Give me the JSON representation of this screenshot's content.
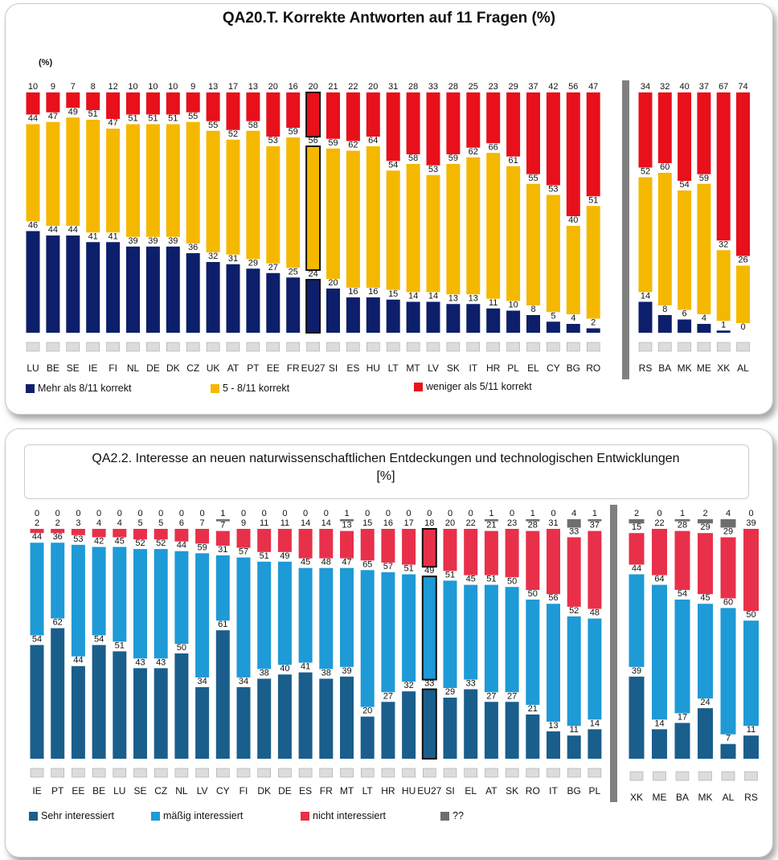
{
  "chart_data": [
    {
      "type": "bar",
      "stacked": true,
      "title": "QA20.T.  Korrekte Antworten auf 11 Fragen (%)",
      "unit_label": "(%)",
      "categories": [
        "LU",
        "BE",
        "SE",
        "IE",
        "FI",
        "NL",
        "DE",
        "DK",
        "CZ",
        "UK",
        "AT",
        "PT",
        "EE",
        "FR",
        "EU27",
        "SI",
        "ES",
        "HU",
        "LT",
        "MT",
        "LV",
        "SK",
        "IT",
        "HR",
        "PL",
        "EL",
        "CY",
        "BG",
        "RO"
      ],
      "categories_extra": [
        "RS",
        "BA",
        "MK",
        "ME",
        "XK",
        "AL"
      ],
      "series": [
        {
          "name": "Mehr als 8/11 korrekt",
          "color": "#0d1f6b",
          "values": [
            46,
            44,
            44,
            41,
            41,
            39,
            39,
            39,
            36,
            32,
            31,
            29,
            27,
            25,
            24,
            20,
            16,
            16,
            15,
            14,
            14,
            13,
            13,
            11,
            10,
            8,
            5,
            4,
            2
          ],
          "values_extra": [
            14,
            8,
            6,
            4,
            1,
            0
          ]
        },
        {
          "name": "5 - 8/11 korrekt",
          "color": "#f5b800",
          "values": [
            44,
            47,
            49,
            51,
            47,
            51,
            51,
            51,
            55,
            55,
            52,
            58,
            53,
            59,
            56,
            59,
            62,
            64,
            54,
            58,
            53,
            59,
            62,
            66,
            61,
            55,
            53,
            40,
            51
          ],
          "values_extra": [
            52,
            60,
            54,
            59,
            32,
            26
          ]
        },
        {
          "name": "weniger als 5/11 korrekt",
          "color": "#e8101a",
          "values": [
            10,
            9,
            7,
            8,
            12,
            10,
            10,
            10,
            9,
            13,
            17,
            13,
            20,
            16,
            20,
            21,
            22,
            20,
            31,
            28,
            33,
            28,
            25,
            23,
            29,
            37,
            42,
            56,
            47
          ],
          "values_extra": [
            34,
            32,
            40,
            37,
            67,
            74
          ]
        }
      ],
      "legend_position": "bottom-left",
      "highlight_category": "EU27"
    },
    {
      "type": "bar",
      "stacked": true,
      "title": "QA2.2. Interesse an neuen naturwissenschaftlichen Entdeckungen und technologischen Entwicklungen",
      "title_unit": "[%]",
      "categories": [
        "IE",
        "PT",
        "EE",
        "BE",
        "LU",
        "SE",
        "CZ",
        "NL",
        "LV",
        "CY",
        "FI",
        "DK",
        "DE",
        "ES",
        "FR",
        "MT",
        "LT",
        "HR",
        "HU",
        "EU27",
        "SI",
        "EL",
        "AT",
        "SK",
        "RO",
        "IT",
        "BG",
        "PL"
      ],
      "categories_extra": [
        "XK",
        "ME",
        "BA",
        "MK",
        "AL",
        "RS"
      ],
      "series": [
        {
          "name": "Sehr interessiert",
          "color": "#1a5e8c",
          "values": [
            54,
            62,
            44,
            54,
            51,
            43,
            43,
            50,
            34,
            61,
            34,
            38,
            40,
            41,
            38,
            39,
            20,
            27,
            32,
            33,
            29,
            33,
            27,
            27,
            21,
            13,
            11,
            14
          ],
          "values_extra": [
            39,
            14,
            17,
            24,
            7,
            11
          ]
        },
        {
          "name": "mäßig interessiert",
          "color": "#1e9ad6",
          "values": [
            44,
            36,
            53,
            42,
            45,
            52,
            52,
            44,
            59,
            31,
            57,
            51,
            49,
            45,
            48,
            47,
            65,
            57,
            51,
            49,
            51,
            45,
            51,
            50,
            50,
            56,
            52,
            48
          ],
          "values_extra": [
            44,
            64,
            54,
            45,
            60,
            50
          ]
        },
        {
          "name": "nicht interessiert",
          "color": "#e8304a",
          "values": [
            2,
            2,
            3,
            4,
            4,
            5,
            5,
            6,
            7,
            7,
            9,
            11,
            11,
            14,
            14,
            13,
            15,
            16,
            17,
            18,
            20,
            22,
            21,
            23,
            28,
            31,
            33,
            37
          ],
          "values_extra": [
            15,
            22,
            28,
            29,
            29,
            39
          ]
        },
        {
          "name": "??",
          "color": "#6e6e6e",
          "values": [
            0,
            0,
            0,
            0,
            0,
            0,
            0,
            0,
            0,
            1,
            0,
            0,
            0,
            0,
            0,
            1,
            0,
            0,
            0,
            0,
            0,
            0,
            1,
            0,
            1,
            0,
            4,
            1
          ],
          "values_extra": [
            2,
            0,
            1,
            2,
            4,
            0
          ]
        }
      ],
      "legend_position": "bottom-left",
      "highlight_category": "EU27"
    }
  ]
}
